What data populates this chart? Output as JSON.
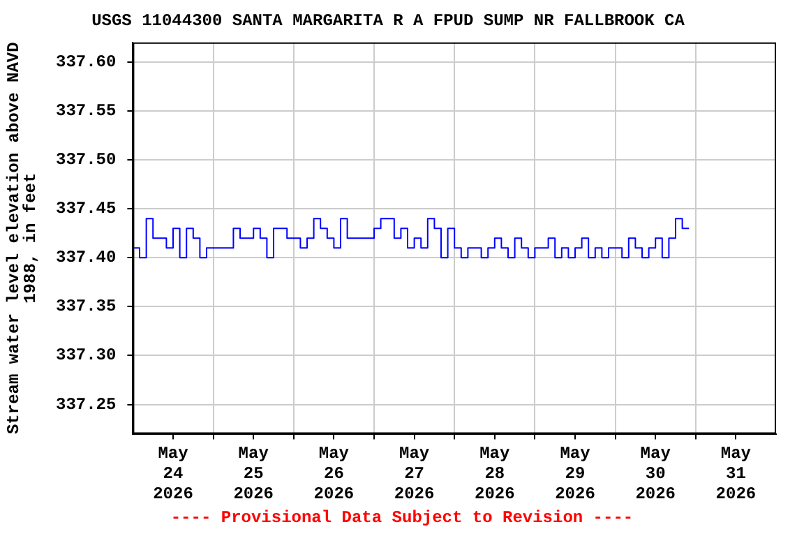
{
  "chart_data": {
    "type": "step",
    "title": "USGS 11044300 SANTA MARGARITA R A FPUD SUMP NR FALLBROOK CA",
    "ylabel": "Stream water level elevation above NAVD\n1988, in feet",
    "annotations": [
      "---- Provisional Data Subject to Revision ----"
    ],
    "x": [
      "2026-05-24T00:00",
      "2026-05-24T02:00",
      "2026-05-24T04:00",
      "2026-05-24T06:00",
      "2026-05-24T08:00",
      "2026-05-24T10:00",
      "2026-05-24T12:00",
      "2026-05-24T14:00",
      "2026-05-24T16:00",
      "2026-05-24T18:00",
      "2026-05-24T20:00",
      "2026-05-24T22:00",
      "2026-05-25T00:00",
      "2026-05-25T02:00",
      "2026-05-25T04:00",
      "2026-05-25T06:00",
      "2026-05-25T08:00",
      "2026-05-25T10:00",
      "2026-05-25T12:00",
      "2026-05-25T14:00",
      "2026-05-25T16:00",
      "2026-05-25T18:00",
      "2026-05-25T20:00",
      "2026-05-25T22:00",
      "2026-05-26T00:00",
      "2026-05-26T02:00",
      "2026-05-26T04:00",
      "2026-05-26T06:00",
      "2026-05-26T08:00",
      "2026-05-26T10:00",
      "2026-05-26T12:00",
      "2026-05-26T14:00",
      "2026-05-26T16:00",
      "2026-05-26T18:00",
      "2026-05-26T20:00",
      "2026-05-26T22:00",
      "2026-05-27T00:00",
      "2026-05-27T02:00",
      "2026-05-27T04:00",
      "2026-05-27T06:00",
      "2026-05-27T08:00",
      "2026-05-27T10:00",
      "2026-05-27T12:00",
      "2026-05-27T14:00",
      "2026-05-27T16:00",
      "2026-05-27T18:00",
      "2026-05-27T20:00",
      "2026-05-27T22:00",
      "2026-05-28T00:00",
      "2026-05-28T02:00",
      "2026-05-28T04:00",
      "2026-05-28T06:00",
      "2026-05-28T08:00",
      "2026-05-28T10:00",
      "2026-05-28T12:00",
      "2026-05-28T14:00",
      "2026-05-28T16:00",
      "2026-05-28T18:00",
      "2026-05-28T20:00",
      "2026-05-28T22:00",
      "2026-05-29T00:00",
      "2026-05-29T02:00",
      "2026-05-29T04:00",
      "2026-05-29T06:00",
      "2026-05-29T08:00",
      "2026-05-29T10:00",
      "2026-05-29T12:00",
      "2026-05-29T14:00",
      "2026-05-29T16:00",
      "2026-05-29T18:00",
      "2026-05-29T20:00",
      "2026-05-29T22:00",
      "2026-05-30T00:00",
      "2026-05-30T02:00",
      "2026-05-30T04:00",
      "2026-05-30T06:00",
      "2026-05-30T08:00",
      "2026-05-30T10:00",
      "2026-05-30T12:00",
      "2026-05-30T14:00",
      "2026-05-30T16:00",
      "2026-05-30T18:00",
      "2026-05-30T20:00",
      "2026-05-30T22:00"
    ],
    "series": [
      {
        "color": "#0000ff",
        "values": [
          337.41,
          337.4,
          337.44,
          337.42,
          337.42,
          337.41,
          337.43,
          337.4,
          337.43,
          337.42,
          337.4,
          337.41,
          337.41,
          337.41,
          337.41,
          337.43,
          337.42,
          337.42,
          337.43,
          337.42,
          337.4,
          337.43,
          337.43,
          337.42,
          337.42,
          337.41,
          337.42,
          337.44,
          337.43,
          337.42,
          337.41,
          337.44,
          337.42,
          337.42,
          337.42,
          337.42,
          337.43,
          337.44,
          337.44,
          337.42,
          337.43,
          337.41,
          337.42,
          337.41,
          337.44,
          337.43,
          337.4,
          337.43,
          337.41,
          337.4,
          337.41,
          337.41,
          337.4,
          337.41,
          337.42,
          337.41,
          337.4,
          337.42,
          337.41,
          337.4,
          337.41,
          337.41,
          337.42,
          337.4,
          337.41,
          337.4,
          337.41,
          337.42,
          337.4,
          337.41,
          337.4,
          337.41,
          337.41,
          337.4,
          337.42,
          337.41,
          337.4,
          337.41,
          337.42,
          337.4,
          337.42,
          337.44,
          337.43,
          337.43
        ]
      }
    ],
    "xlim": [
      "2026-05-24T00:00",
      "2026-06-01T00:00"
    ],
    "xticks": [
      {
        "value": "2026-05-24T12:00",
        "label": "May\n24\n2026"
      },
      {
        "value": "2026-05-25T00:00",
        "label": null
      },
      {
        "value": "2026-05-25T12:00",
        "label": "May\n25\n2026"
      },
      {
        "value": "2026-05-26T00:00",
        "label": null
      },
      {
        "value": "2026-05-26T12:00",
        "label": "May\n26\n2026"
      },
      {
        "value": "2026-05-27T00:00",
        "label": null
      },
      {
        "value": "2026-05-27T12:00",
        "label": "May\n27\n2026"
      },
      {
        "value": "2026-05-28T00:00",
        "label": null
      },
      {
        "value": "2026-05-28T12:00",
        "label": "May\n28\n2026"
      },
      {
        "value": "2026-05-29T00:00",
        "label": null
      },
      {
        "value": "2026-05-29T12:00",
        "label": "May\n29\n2026"
      },
      {
        "value": "2026-05-30T00:00",
        "label": null
      },
      {
        "value": "2026-05-30T12:00",
        "label": "May\n30\n2026"
      },
      {
        "value": "2026-05-31T00:00",
        "label": null
      },
      {
        "value": "2026-05-31T12:00",
        "label": "May\n31\n2026"
      }
    ],
    "ylim": [
      337.22,
      337.62
    ],
    "yticks": [
      {
        "value": 337.25,
        "label": "337.25"
      },
      {
        "value": 337.3,
        "label": "337.30"
      },
      {
        "value": 337.35,
        "label": "337.35"
      },
      {
        "value": 337.4,
        "label": "337.40"
      },
      {
        "value": 337.45,
        "label": "337.45"
      },
      {
        "value": 337.5,
        "label": "337.50"
      },
      {
        "value": 337.55,
        "label": "337.55"
      },
      {
        "value": 337.6,
        "label": "337.60"
      }
    ],
    "grid": true,
    "legend": false,
    "marker": "none",
    "line_style": "solid"
  }
}
